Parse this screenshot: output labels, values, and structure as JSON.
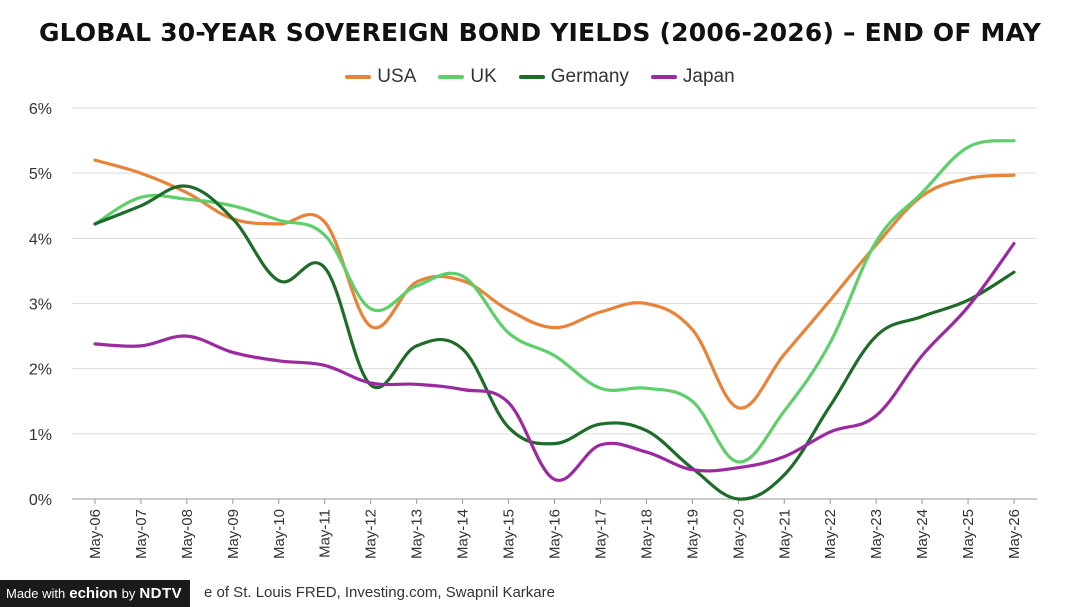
{
  "source_text": "e of St. Louis FRED, Investing.com, Swapnil Karkare",
  "badge": {
    "prefix": "Made with",
    "brand": "echion",
    "by": "by",
    "brand2": "NDTV"
  },
  "chart_data": {
    "type": "line",
    "title": "GLOBAL 30-YEAR SOVEREIGN BOND YIELDS (2006-2026) – END OF MAY",
    "categories": [
      "May-06",
      "May-07",
      "May-08",
      "May-09",
      "May-10",
      "May-11",
      "May-12",
      "May-13",
      "May-14",
      "May-15",
      "May-16",
      "May-17",
      "May-18",
      "May-19",
      "May-20",
      "May-21",
      "May-22",
      "May-23",
      "May-24",
      "May-25",
      "May-26"
    ],
    "ylim": [
      0,
      6
    ],
    "yticks": [
      "0%",
      "1%",
      "2%",
      "3%",
      "4%",
      "5%",
      "6%"
    ],
    "grid": true,
    "legend_position": "top",
    "series": [
      {
        "name": "USA",
        "color": "#e8833a",
        "values": [
          5.2,
          5.0,
          4.7,
          4.3,
          4.22,
          4.25,
          2.65,
          3.33,
          3.35,
          2.9,
          2.63,
          2.87,
          3.0,
          2.6,
          1.4,
          2.22,
          3.05,
          3.9,
          4.65,
          4.92,
          4.97
        ]
      },
      {
        "name": "UK",
        "color": "#5fcf6c",
        "values": [
          4.22,
          4.63,
          4.6,
          4.5,
          4.28,
          4.05,
          2.92,
          3.27,
          3.42,
          2.55,
          2.2,
          1.7,
          1.7,
          1.5,
          0.57,
          1.35,
          2.4,
          3.95,
          4.7,
          5.4,
          5.5
        ]
      },
      {
        "name": "Germany",
        "color": "#1f6b2a",
        "values": [
          4.22,
          4.5,
          4.8,
          4.3,
          3.35,
          3.55,
          1.75,
          2.35,
          2.3,
          1.1,
          0.85,
          1.15,
          1.05,
          0.47,
          0.0,
          0.37,
          1.43,
          2.5,
          2.8,
          3.05,
          3.48
        ]
      },
      {
        "name": "Japan",
        "color": "#9b2aa0",
        "values": [
          2.38,
          2.35,
          2.5,
          2.25,
          2.12,
          2.05,
          1.78,
          1.76,
          1.68,
          1.48,
          0.3,
          0.83,
          0.72,
          0.45,
          0.48,
          0.65,
          1.03,
          1.28,
          2.2,
          2.95,
          3.92
        ]
      }
    ]
  }
}
